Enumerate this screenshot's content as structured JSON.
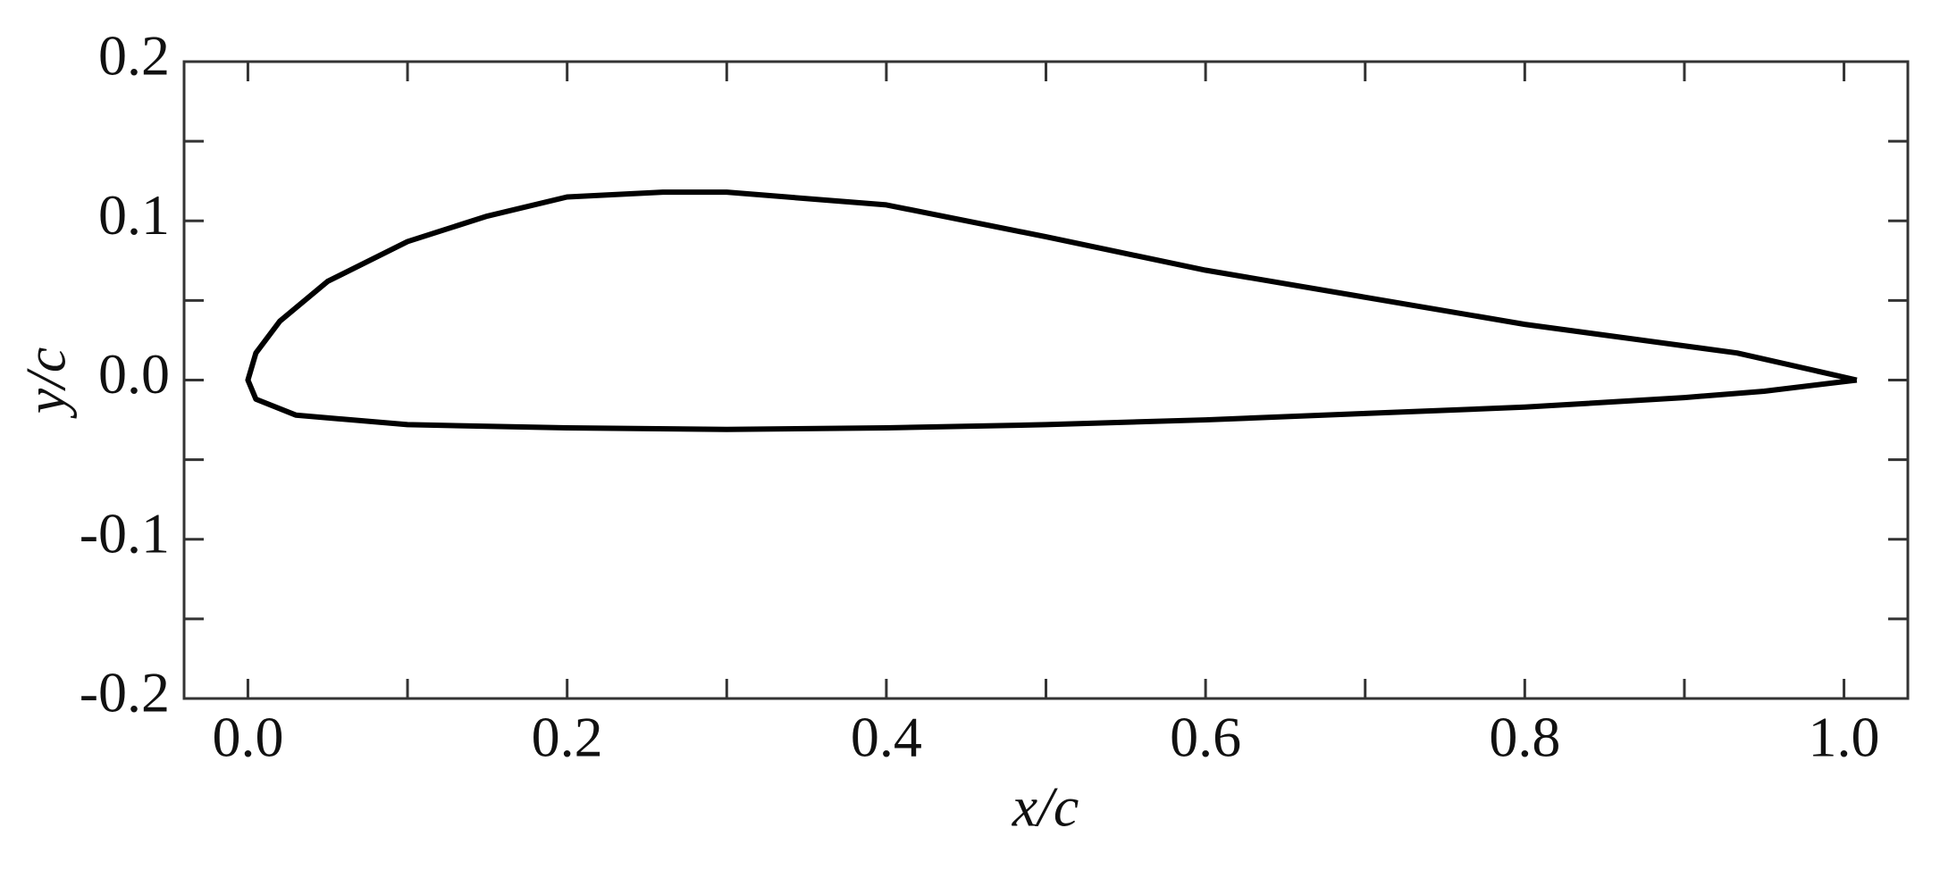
{
  "chart_data": {
    "type": "line",
    "xlabel": "x/c",
    "ylabel": "y/c",
    "xlim": [
      -0.04,
      1.04
    ],
    "ylim": [
      -0.2,
      0.2
    ],
    "xticks": [
      {
        "value": 0,
        "label": "0.0"
      },
      0.2,
      0.4,
      0.6,
      0.8,
      {
        "value": 1,
        "label": "1.0"
      }
    ],
    "xminorticks": [
      0.1,
      0.3,
      0.5,
      0.7,
      0.9
    ],
    "yticks": [
      -0.2,
      -0.1,
      {
        "value": 0,
        "label": "0.0"
      },
      0.1,
      0.2
    ],
    "yminorticks": [
      -0.15,
      -0.05,
      0.05,
      0.15
    ],
    "mirror_ticks": true,
    "series": [
      {
        "color": "#000000",
        "x": [
          1.008,
          0.933,
          0.8,
          0.7,
          0.6,
          0.5,
          0.4,
          0.3,
          0.26,
          0.2,
          0.15,
          0.1,
          0.05,
          0.02,
          0.005,
          0,
          0.005,
          0.03,
          0.1,
          0.2,
          0.3,
          0.4,
          0.5,
          0.6,
          0.7,
          0.8,
          0.9,
          0.95,
          1.008
        ],
        "values": [
          0,
          0.017,
          0.035,
          0.052,
          0.069,
          0.09,
          0.11,
          0.118,
          0.118,
          0.115,
          0.103,
          0.087,
          0.062,
          0.037,
          0.017,
          0,
          -0.012,
          -0.022,
          -0.028,
          -0.03,
          -0.031,
          -0.03,
          -0.028,
          -0.025,
          -0.021,
          -0.017,
          -0.011,
          -0.007,
          0
        ]
      }
    ]
  }
}
